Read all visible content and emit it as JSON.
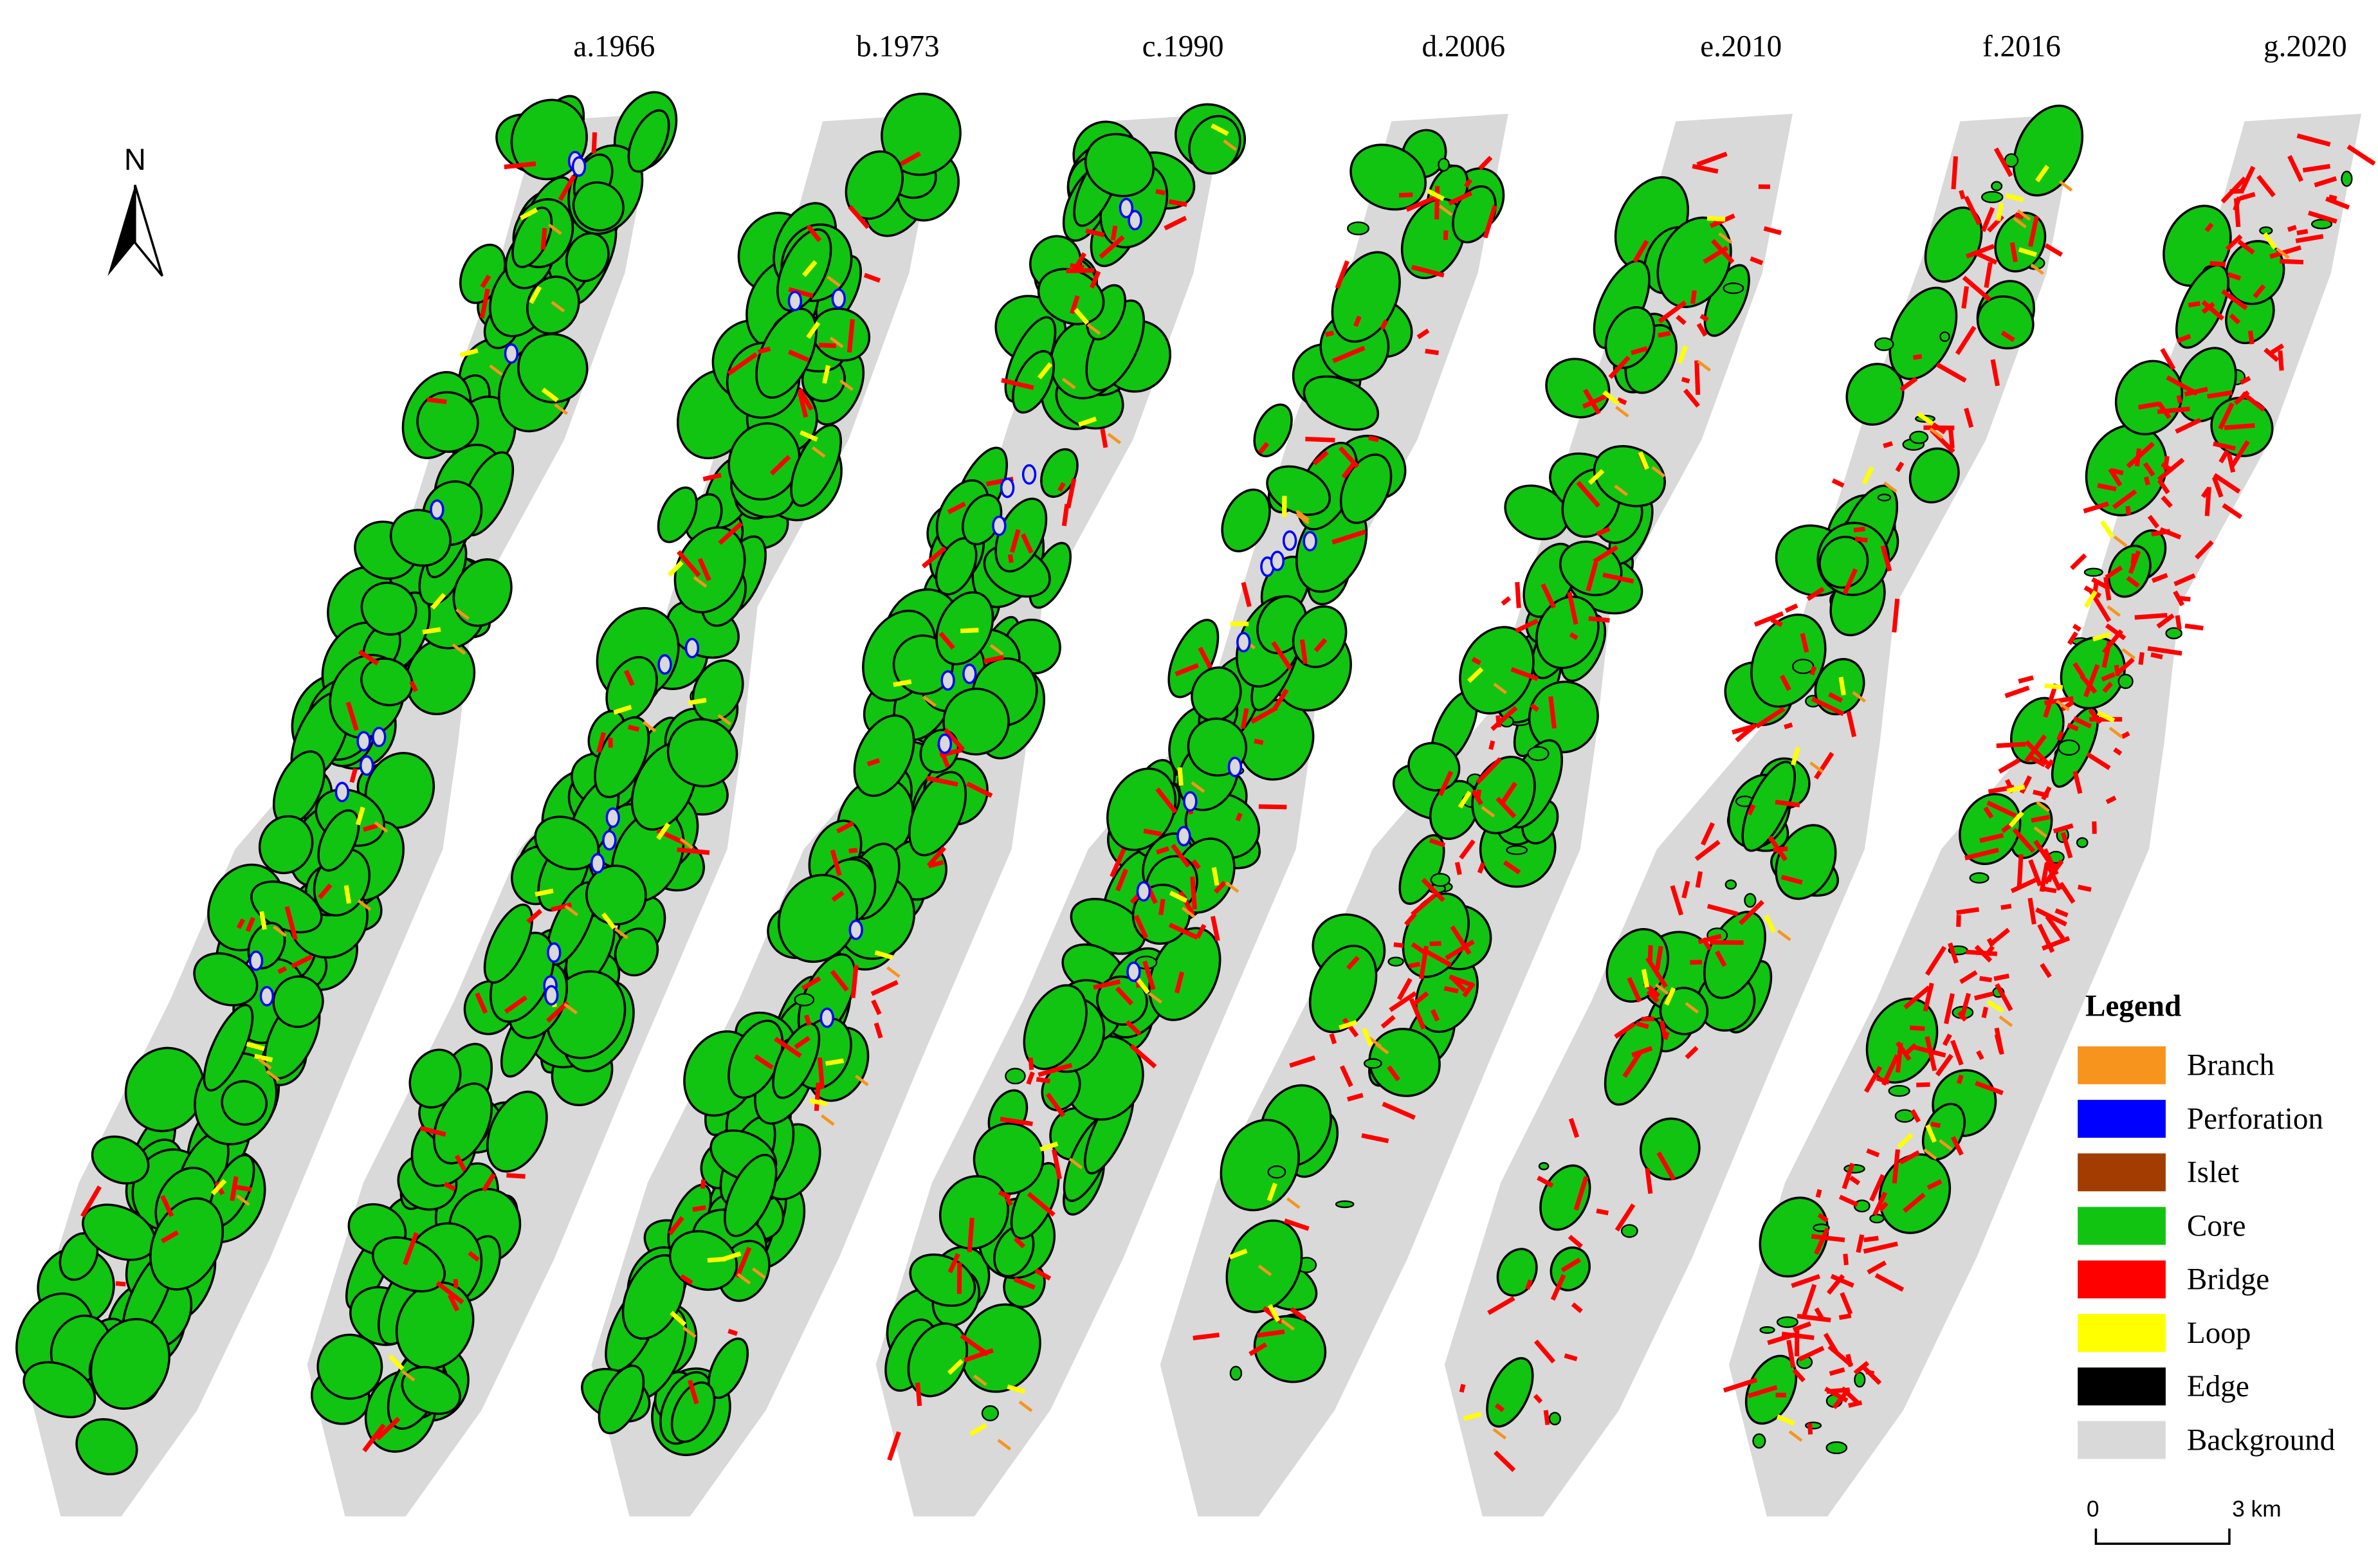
{
  "panels": [
    {
      "title": "a.1966"
    },
    {
      "title": "b.1973"
    },
    {
      "title": "c.1990"
    },
    {
      "title": "d.2006"
    },
    {
      "title": "e.2010"
    },
    {
      "title": "f.2016"
    },
    {
      "title": "g.2020"
    }
  ],
  "north_label": "N",
  "legend": {
    "title": "Legend",
    "items": [
      {
        "label": "Branch",
        "color": "#f7941d"
      },
      {
        "label": "Perforation",
        "color": "#0000ff"
      },
      {
        "label": "Islet",
        "color": "#a33c00"
      },
      {
        "label": "Core",
        "color": "#11c411"
      },
      {
        "label": "Bridge",
        "color": "#ff0000"
      },
      {
        "label": "Loop",
        "color": "#ffff00"
      },
      {
        "label": "Edge",
        "color": "#000000"
      },
      {
        "label": "Background",
        "color": "#d9d9d9"
      }
    ]
  },
  "scale_bar": {
    "start_label": "0",
    "end_label": "3 km"
  }
}
